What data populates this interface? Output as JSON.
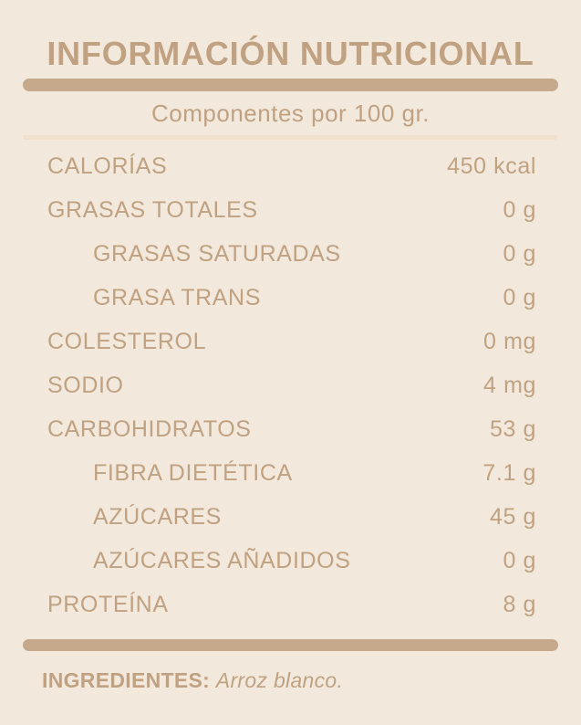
{
  "header": {
    "title": "INFORMACIÓN NUTRICIONAL",
    "subtitle": "Componentes por 100 gr."
  },
  "table": {
    "rows": [
      {
        "label": "CALORÍAS",
        "value": "450 kcal",
        "indent": false
      },
      {
        "label": "GRASAS TOTALES",
        "value": "0 g",
        "indent": false
      },
      {
        "label": "GRASAS SATURADAS",
        "value": "0 g",
        "indent": true
      },
      {
        "label": "GRASA TRANS",
        "value": "0 g",
        "indent": true
      },
      {
        "label": "COLESTEROL",
        "value": "0 mg",
        "indent": false
      },
      {
        "label": "SODIO",
        "value": "4 mg",
        "indent": false
      },
      {
        "label": "CARBOHIDRATOS",
        "value": "53 g",
        "indent": false
      },
      {
        "label": "FIBRA DIETÉTICA",
        "value": "7.1 g",
        "indent": true
      },
      {
        "label": "AZÚCARES",
        "value": "45 g",
        "indent": true
      },
      {
        "label": "AZÚCARES AÑADIDOS",
        "value": "0 g",
        "indent": true
      },
      {
        "label": "PROTEÍNA",
        "value": "8 g",
        "indent": false
      }
    ]
  },
  "ingredients": {
    "label": "INGREDIENTES:",
    "value": "Arroz blanco."
  },
  "colors": {
    "background": "#f2e9dc",
    "text": "#c0a181",
    "accent_bar": "#c6a98a",
    "divider": "#f0e0cc"
  }
}
